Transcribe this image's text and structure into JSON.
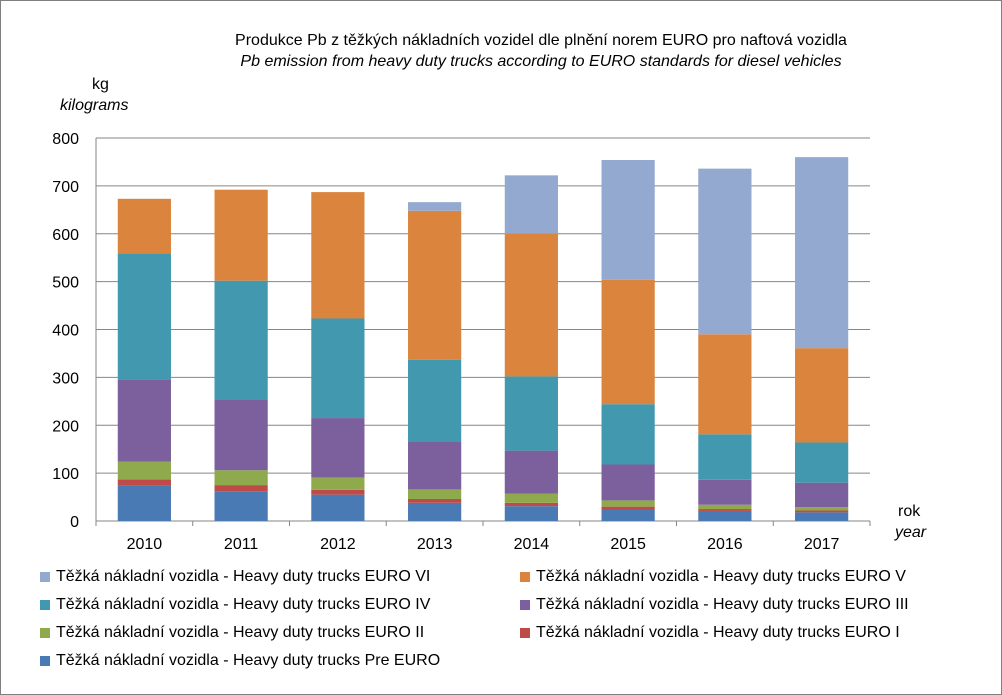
{
  "chart_data": {
    "type": "bar",
    "stacked": true,
    "title": "Produkce Pb z těžkých nákladních  vozidel dle plnění norem EURO pro naftová vozidla",
    "subtitle": "Pb emission from heavy duty trucks according to EURO standards for diesel vehicles",
    "ylabel": "kg",
    "ylabel_en": "kilograms",
    "xlabel": "rok",
    "xlabel_en": "year",
    "ylim": [
      0,
      800
    ],
    "yticks": [
      0,
      100,
      200,
      300,
      400,
      500,
      600,
      700,
      800
    ],
    "grid": true,
    "legend_position": "bottom",
    "categories": [
      "2010",
      "2011",
      "2012",
      "2013",
      "2014",
      "2015",
      "2016",
      "2017"
    ],
    "series": [
      {
        "name": "Těžká nákladní vozidla - Heavy duty trucks Pre EURO",
        "color": "#4a7ab4",
        "values": [
          75,
          62,
          55,
          38,
          31,
          24,
          21,
          18
        ]
      },
      {
        "name": "Těžká nákladní vozidla - Heavy duty trucks EURO I",
        "color": "#be4b48",
        "values": [
          12,
          13,
          10,
          8,
          7,
          6,
          4,
          4
        ]
      },
      {
        "name": "Těžká nákladní vozidla - Heavy duty trucks EURO II",
        "color": "#8faa4d",
        "values": [
          37,
          31,
          26,
          20,
          19,
          13,
          9,
          7
        ]
      },
      {
        "name": "Těžká nákladní vozidla - Heavy duty trucks EURO III",
        "color": "#7c5f9d",
        "values": [
          172,
          148,
          124,
          99,
          90,
          75,
          52,
          51
        ]
      },
      {
        "name": "Těžká nákladní vozidla - Heavy duty trucks EURO IV",
        "color": "#4198af",
        "values": [
          263,
          248,
          208,
          172,
          155,
          126,
          95,
          84
        ]
      },
      {
        "name": "Těžká nákladní vozidla - Heavy duty trucks EURO V",
        "color": "#db843d",
        "values": [
          114,
          190,
          264,
          311,
          298,
          260,
          209,
          197
        ]
      },
      {
        "name": "Těžká nákladní vozidla - Heavy duty trucks EURO VI",
        "color": "#93a9d0",
        "values": [
          0,
          0,
          0,
          18,
          122,
          250,
          346,
          399
        ]
      }
    ]
  },
  "legend_order": [
    6,
    5,
    4,
    3,
    2,
    1,
    0
  ]
}
